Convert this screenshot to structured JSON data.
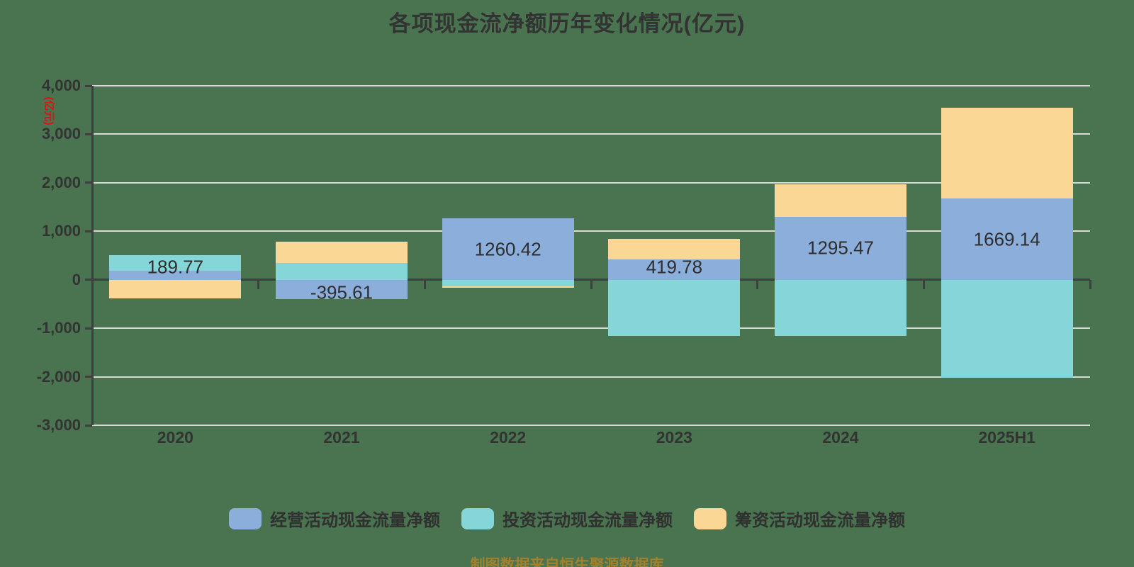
{
  "page": {
    "background_color": "#4A7350"
  },
  "chart_data": {
    "type": "bar",
    "stacked": true,
    "title": "各项现金流净额历年变化情况(亿元)",
    "y_axis_unit_label": "(亿元)",
    "footnote": "制图数据来自恒生聚源数据库",
    "categories": [
      "2020",
      "2021",
      "2022",
      "2023",
      "2024",
      "2025H1"
    ],
    "series": [
      {
        "key": "operating",
        "name": "经营活动现金流量净额",
        "color": "#8CAEDB",
        "data_labels_visible": true,
        "values": [
          189.77,
          -395.61,
          1260.42,
          419.78,
          1295.47,
          1669.14
        ]
      },
      {
        "key": "investing",
        "name": "投资活动现金流量净额",
        "color": "#85D6D8",
        "data_labels_visible": false,
        "values": [
          316,
          350,
          -135,
          -1160,
          -1157,
          -2022
        ]
      },
      {
        "key": "financing",
        "name": "筹资活动现金流量净额",
        "color": "#FAD794",
        "data_labels_visible": false,
        "values": [
          -384,
          439,
          -30,
          417,
          666,
          1880
        ]
      }
    ],
    "ylim": [
      -3000,
      4000
    ],
    "ytick_step": 1000,
    "yticks": {
      "values": [
        4000,
        3000,
        2000,
        1000,
        0,
        -1000,
        -2000,
        -3000
      ],
      "labels": [
        "4,000",
        "3,000",
        "2,000",
        "1,000",
        "0",
        "-1,000",
        "-2,000",
        "-3,000"
      ]
    },
    "grid": true,
    "legend_position": "bottom",
    "colors": {
      "background": "#4A7350",
      "title_text": "#333333",
      "axis_text": "#333333",
      "axis_line": "#3F3F3F",
      "gridline": "#D9D9D9",
      "bar_label_text": "#2E2E2E",
      "unit_label_red": "#E01212",
      "footnote_text": "#A0812C"
    }
  }
}
